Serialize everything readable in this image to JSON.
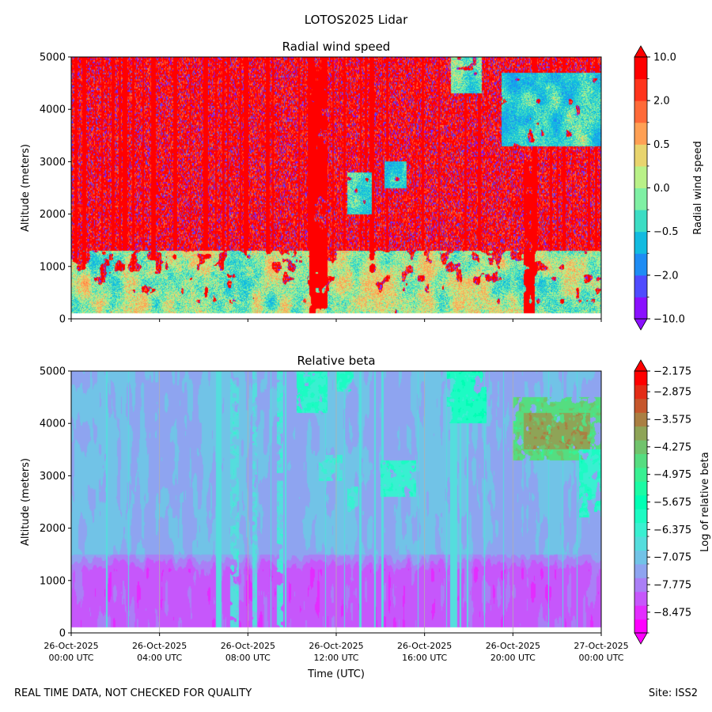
{
  "figure": {
    "suptitle": "LOTOS2025 Lidar",
    "footer_left": "REAL TIME DATA, NOT CHECKED FOR QUALITY",
    "footer_right": "Site: ISS2"
  },
  "chart_data": [
    {
      "type": "heatmap",
      "title": "Radial wind speed",
      "ylabel": "Altitude (meters)",
      "xlabel": "",
      "ylim": [
        0,
        5000
      ],
      "yticks": [
        0,
        1000,
        2000,
        3000,
        4000,
        5000
      ],
      "xlim_hours": [
        0,
        24
      ],
      "xticks_hours": [
        0,
        4,
        8,
        12,
        16,
        20,
        24
      ],
      "show_xtick_labels": false,
      "data_altitude_range": [
        100,
        5000
      ],
      "colorbar": {
        "label": "Radial wind speed",
        "extend": "both",
        "boundaries": [
          -10,
          -5,
          -2,
          -1,
          -0.5,
          -0.2,
          0,
          0.2,
          0.5,
          1,
          2,
          5,
          10
        ],
        "colors": [
          "#8A10FF",
          "#4F4BFF",
          "#1E8CF4",
          "#12BBE0",
          "#3CDDC4",
          "#7FF0A4",
          "#B9F188",
          "#E8D46E",
          "#FFA054",
          "#FF6A38",
          "#FF341C",
          "#FF0000"
        ],
        "ticks": [
          -10,
          -2,
          -0.5,
          0,
          0.5,
          2,
          10
        ],
        "tick_labels": [
          "−10.0",
          "−2.0",
          "−0.5",
          "0.0",
          "0.5",
          "2.0",
          "10.0"
        ]
      },
      "field_features": [
        {
          "desc": "slow low-level winds",
          "t0": 0,
          "t1": 24,
          "z0": 100,
          "z1": 1300,
          "value": 0.0
        },
        {
          "desc": "clean-air segment upper right",
          "t0": 19.5,
          "t1": 24,
          "z0": 3300,
          "z1": 4700,
          "value": -0.6
        },
        {
          "desc": "clean-air patch",
          "t0": 14.2,
          "t1": 15.2,
          "z0": 2500,
          "z1": 3000,
          "value": -0.7
        },
        {
          "desc": "clean-air patch",
          "t0": 17.2,
          "t1": 18.6,
          "z0": 4300,
          "z1": 5000,
          "value": -0.3
        },
        {
          "desc": "clean-air patch",
          "t0": 12.5,
          "t1": 13.6,
          "z0": 2000,
          "z1": 2800,
          "value": -0.3
        },
        {
          "desc": "noisy column",
          "t0": 10.8,
          "t1": 11.6,
          "z0": 100,
          "z1": 5000,
          "value": 8.0
        },
        {
          "desc": "noisy column",
          "t0": 20.5,
          "t1": 21.0,
          "z0": 100,
          "z1": 3000,
          "value": 8.0
        }
      ]
    },
    {
      "type": "heatmap",
      "title": "Relative beta",
      "ylabel": "Altitude (meters)",
      "xlabel": "Time (UTC)",
      "ylim": [
        0,
        5000
      ],
      "yticks": [
        0,
        1000,
        2000,
        3000,
        4000,
        5000
      ],
      "xlim_hours": [
        0,
        24
      ],
      "xticks_hours": [
        0,
        4,
        8,
        12,
        16,
        20,
        24
      ],
      "xtick_labels": [
        [
          "26-Oct-2025",
          "00:00 UTC"
        ],
        [
          "26-Oct-2025",
          "04:00 UTC"
        ],
        [
          "26-Oct-2025",
          "08:00 UTC"
        ],
        [
          "26-Oct-2025",
          "12:00 UTC"
        ],
        [
          "26-Oct-2025",
          "16:00 UTC"
        ],
        [
          "26-Oct-2025",
          "20:00 UTC"
        ],
        [
          "27-Oct-2025",
          "00:00 UTC"
        ]
      ],
      "data_altitude_range": [
        100,
        5000
      ],
      "colorbar": {
        "label": "Log of relative beta",
        "extend": "both",
        "range": [
          -9.0,
          -2.175
        ],
        "boundary_step": 0.35,
        "colormap": "rainbow",
        "ticks": [
          -2.175,
          -2.875,
          -3.575,
          -4.275,
          -4.975,
          -5.675,
          -6.375,
          -7.075,
          -7.775,
          -8.475
        ],
        "tick_labels": [
          "−2.175",
          "−2.875",
          "−3.575",
          "−4.275",
          "−4.975",
          "−5.675",
          "−6.375",
          "−7.075",
          "−7.775",
          "−8.475"
        ]
      },
      "field_features": [
        {
          "desc": "boundary layer, low beta",
          "t0": 0,
          "t1": 24,
          "z0": 100,
          "z1": 1500,
          "value": -8.1
        },
        {
          "desc": "free troposphere background",
          "t0": 0,
          "t1": 24,
          "z0": 1500,
          "z1": 5000,
          "value": -7.2
        },
        {
          "desc": "elevated aerosol layer",
          "t0": 20.0,
          "t1": 24,
          "z0": 3300,
          "z1": 4500,
          "value": -4.6
        },
        {
          "desc": "layer core",
          "t0": 20.5,
          "t1": 23.5,
          "z0": 3500,
          "z1": 4200,
          "value": -3.9
        },
        {
          "desc": "descending plume",
          "t0": 23.0,
          "t1": 24,
          "z0": 2200,
          "z1": 3500,
          "value": -6.2
        },
        {
          "desc": "cloud patch",
          "t0": 14.0,
          "t1": 15.6,
          "z0": 2600,
          "z1": 3300,
          "value": -6.3
        },
        {
          "desc": "cloud patch",
          "t0": 11.2,
          "t1": 12.3,
          "z0": 2900,
          "z1": 3400,
          "value": -6.6
        },
        {
          "desc": "cloud patch",
          "t0": 12.5,
          "t1": 13.0,
          "z0": 2300,
          "z1": 2800,
          "value": -6.5
        },
        {
          "desc": "high cloud",
          "t0": 17.0,
          "t1": 18.8,
          "z0": 4000,
          "z1": 5000,
          "value": -6.0
        },
        {
          "desc": "high cloud",
          "t0": 10.2,
          "t1": 11.6,
          "z0": 4200,
          "z1": 5000,
          "value": -6.2
        },
        {
          "desc": "high cloud",
          "t0": 12.0,
          "t1": 12.8,
          "z0": 4600,
          "z1": 5000,
          "value": -6.2
        },
        {
          "desc": "vertical streak",
          "t0": 7.2,
          "t1": 7.6,
          "z0": 100,
          "z1": 5000,
          "value": -6.8
        },
        {
          "desc": "vertical streak",
          "t0": 9.3,
          "t1": 9.6,
          "z0": 100,
          "z1": 5000,
          "value": -6.7
        },
        {
          "desc": "vertical streak",
          "t0": 8.2,
          "t1": 8.4,
          "z0": 100,
          "z1": 5000,
          "value": -6.9
        }
      ]
    }
  ]
}
